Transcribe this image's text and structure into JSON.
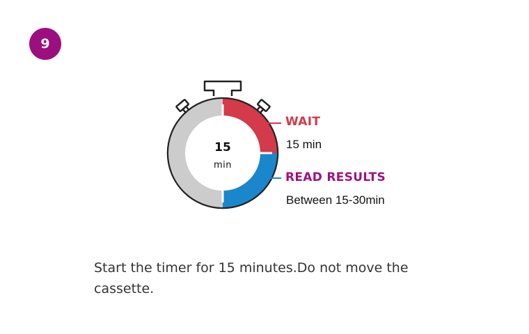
{
  "step": {
    "number": "9"
  },
  "timer": {
    "center_value": "15",
    "center_unit": "min",
    "wait": {
      "label": "WAIT",
      "time": "15 min",
      "color": "#d33a4a"
    },
    "read": {
      "label": "READ RESULTS",
      "time": "Between 15-30min",
      "color": "#1a86cc"
    },
    "remaining_color": "#cccccc",
    "read_label_color": "#a0117f"
  },
  "instruction": {
    "text": "Start the timer for 15 minutes.Do not move the cassette."
  },
  "colors": {
    "badge": "#9c0f7f"
  }
}
